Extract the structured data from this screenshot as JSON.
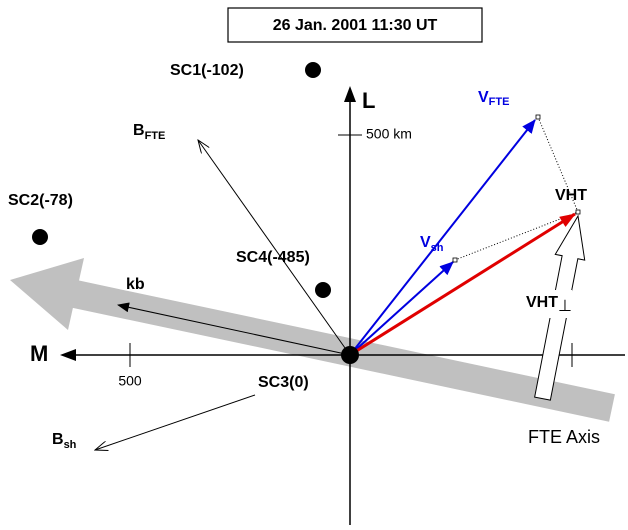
{
  "title": "26 Jan. 2001 11:30 UT",
  "spacecraft": [
    "SC1(-102)",
    "SC2(-78)",
    "SC4(-485)",
    "SC3(0)"
  ],
  "axes": {
    "l": "L",
    "m": "M",
    "l_scale": "500 km",
    "m_scale": "500",
    "fte_axis": "FTE Axis"
  },
  "vectors": {
    "v_fte": {
      "main": "V",
      "sub": "FTE"
    },
    "v_sh": {
      "main": "V",
      "sub": "sh"
    },
    "vht": "VHT",
    "vht_perp": {
      "main": "VHT",
      "sub": "⊥"
    },
    "b_fte": {
      "main": "B",
      "sub": "FTE"
    },
    "b_sh": {
      "main": "B",
      "sub": "sh"
    },
    "kb": "kb"
  }
}
